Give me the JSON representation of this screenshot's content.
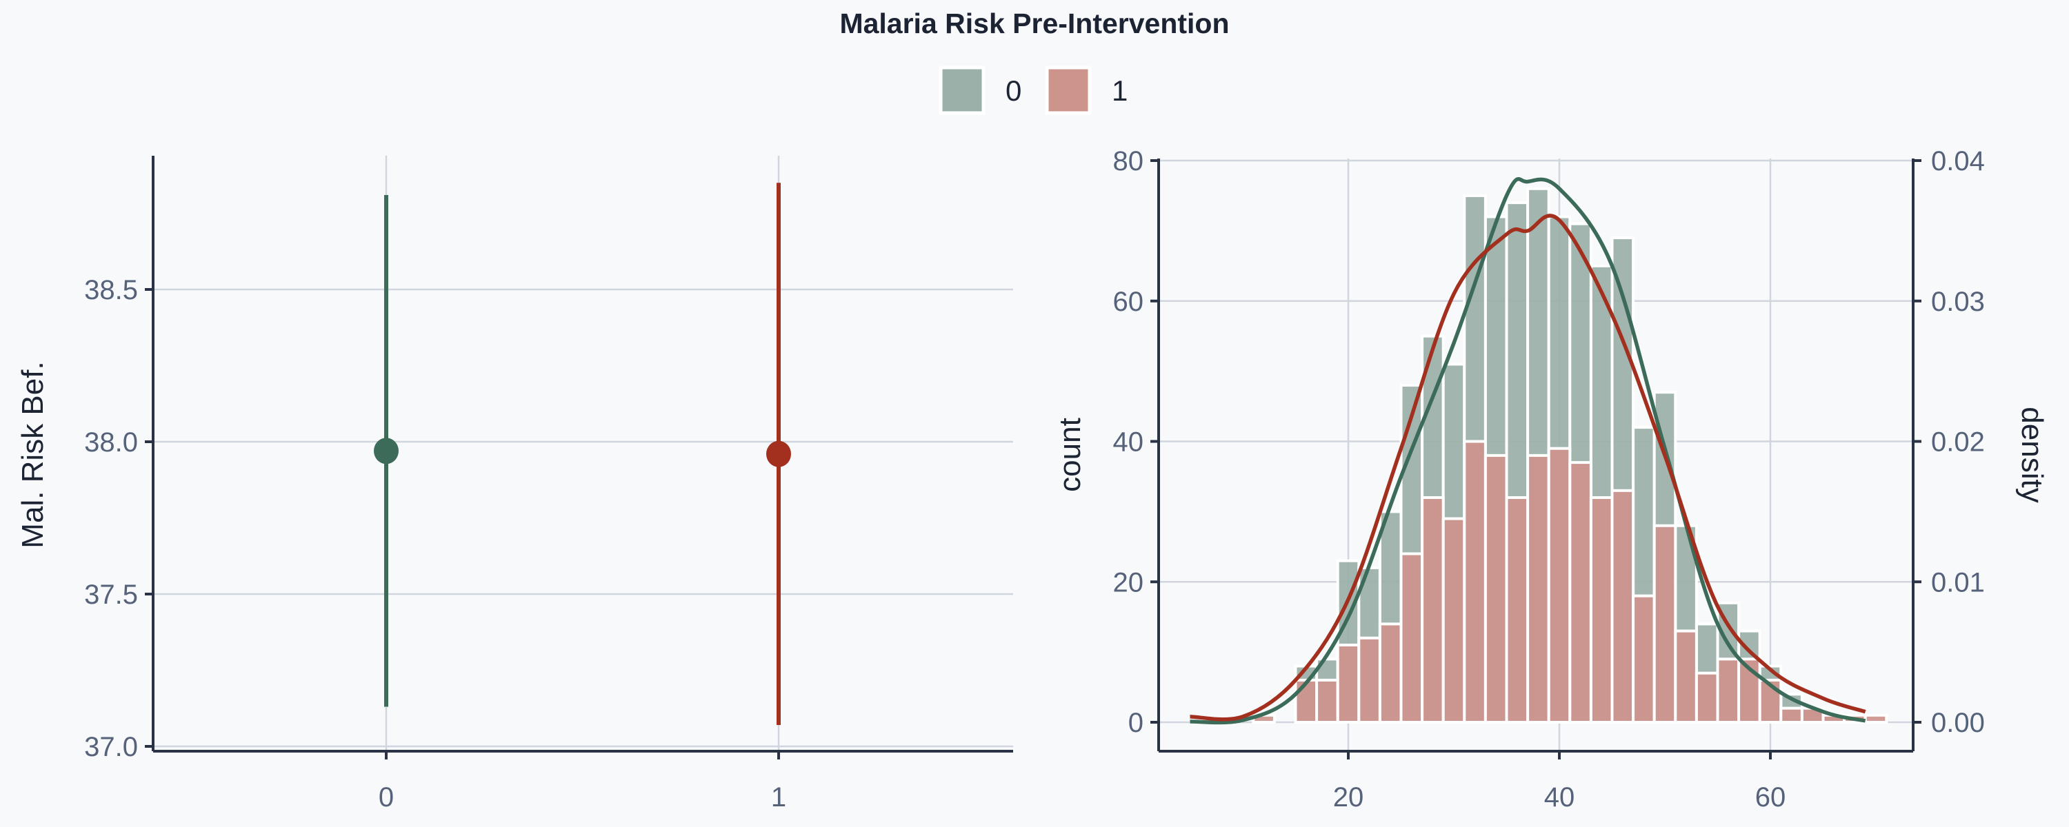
{
  "chart_data": [
    {
      "type": "pointrange",
      "title": "Malaria Risk Pre-Intervention",
      "legend": {
        "position": "top-center",
        "entries": [
          "0",
          "1"
        ]
      },
      "xlabel": "",
      "ylabel": "Mal. Risk Bef.",
      "categories": [
        "0",
        "1"
      ],
      "ylim": [
        37.0,
        38.9
      ],
      "yticks": [
        "37.0",
        "37.5",
        "38.0",
        "38.5"
      ],
      "grid": true,
      "series": [
        {
          "name": "0",
          "color": "#3d6b5a",
          "mean": 37.97,
          "lower": 37.13,
          "upper": 38.81
        },
        {
          "name": "1",
          "color": "#a3301f",
          "mean": 37.96,
          "lower": 37.07,
          "upper": 38.85
        }
      ]
    },
    {
      "type": "bar",
      "subtype": "histogram+density",
      "xlabel": "",
      "ylabel": "count",
      "y2label": "density",
      "xlim": [
        2,
        73.5
      ],
      "ylim": [
        0,
        80
      ],
      "y2lim": [
        0,
        0.04
      ],
      "xticks": [
        "20",
        "40",
        "60"
      ],
      "yticks": [
        "0",
        "20",
        "40",
        "60",
        "80"
      ],
      "y2ticks": [
        "0.00",
        "0.01",
        "0.02",
        "0.03",
        "0.04"
      ],
      "grid": true,
      "bin_width": 2,
      "bin_starts": [
        11,
        13,
        15,
        17,
        19,
        21,
        23,
        25,
        27,
        29,
        31,
        33,
        35,
        37,
        39,
        41,
        43,
        45,
        47,
        49,
        51,
        53,
        55,
        57,
        59,
        61,
        63,
        65,
        67,
        69
      ],
      "series": [
        {
          "name": "0",
          "bar_color": "#9ab0a8",
          "line_color": "#3d6b5a",
          "counts": [
            0,
            0,
            8,
            9,
            23,
            22,
            30,
            48,
            55,
            51,
            75,
            72,
            74,
            76,
            72,
            71,
            65,
            69,
            42,
            47,
            28,
            14,
            17,
            13,
            8,
            4,
            2,
            1,
            0,
            0
          ],
          "density_x": [
            5,
            10,
            15,
            20,
            25,
            30,
            35,
            37,
            40,
            45,
            50,
            55,
            60,
            65,
            69
          ],
          "density_y": [
            5e-05,
            0.00015,
            0.002,
            0.0075,
            0.0175,
            0.027,
            0.0375,
            0.0385,
            0.038,
            0.0325,
            0.0195,
            0.007,
            0.00265,
            0.00075,
            0.0001
          ]
        },
        {
          "name": "1",
          "bar_color": "#cd948c",
          "line_color": "#a3301f",
          "counts": [
            1,
            0,
            6,
            6,
            11,
            12,
            14,
            24,
            32,
            29,
            40,
            38,
            32,
            38,
            39,
            37,
            32,
            33,
            18,
            28,
            13,
            7,
            9,
            9,
            6,
            2,
            2,
            1,
            1,
            1
          ],
          "density_x": [
            5,
            10,
            15,
            20,
            25,
            30,
            35,
            37,
            40,
            45,
            50,
            55,
            60,
            65,
            69
          ],
          "density_y": [
            0.0004,
            0.0004,
            0.003,
            0.00875,
            0.0195,
            0.0305,
            0.03475,
            0.035,
            0.03575,
            0.029,
            0.019,
            0.00825,
            0.00375,
            0.0017,
            0.00075
          ]
        }
      ]
    }
  ]
}
